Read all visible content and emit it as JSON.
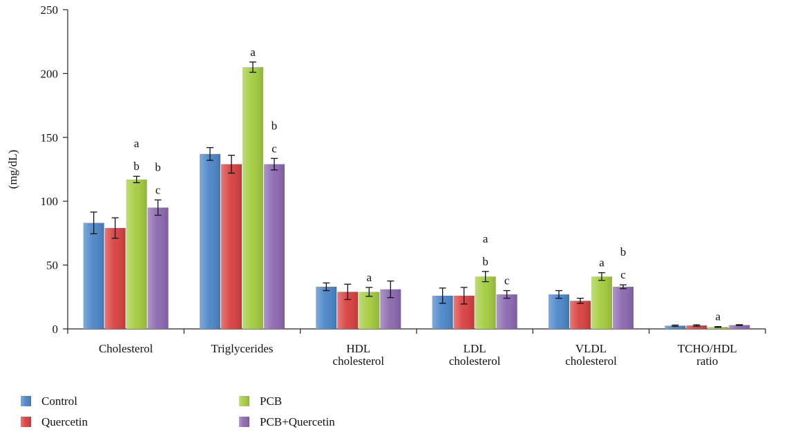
{
  "chart_data": {
    "type": "bar",
    "ylabel": "(mg/dL)",
    "ylim": [
      0,
      250
    ],
    "yticks": [
      0,
      50,
      100,
      150,
      200,
      250
    ],
    "grid": false,
    "legend_position": "bottom-left",
    "categories": [
      [
        "Cholesterol"
      ],
      [
        "Triglycerides"
      ],
      [
        "HDL",
        "cholesterol"
      ],
      [
        "LDL",
        "cholesterol"
      ],
      [
        "VLDL",
        "cholesterol"
      ],
      [
        "TCHO/HDL",
        "ratio"
      ]
    ],
    "series": [
      {
        "name": "Control",
        "color": "#4a86c8",
        "values": [
          83,
          137,
          33,
          26,
          27,
          2.5
        ],
        "errors": [
          8.5,
          5,
          3,
          6,
          3,
          0.5
        ],
        "annotations": [
          [],
          [],
          [],
          [],
          [],
          []
        ]
      },
      {
        "name": "Quercetin",
        "color": "#d8403f",
        "values": [
          79,
          129,
          29,
          26,
          22,
          2.7
        ],
        "errors": [
          8,
          7,
          6,
          6.5,
          2,
          0.5
        ],
        "annotations": [
          [],
          [],
          [],
          [],
          [],
          []
        ]
      },
      {
        "name": "PCB",
        "color": "#a3cc3f",
        "values": [
          117,
          205,
          29,
          41,
          41,
          1.5
        ],
        "errors": [
          2.5,
          4,
          3.5,
          4,
          3,
          0.3
        ],
        "annotations": [
          [
            "a",
            "b"
          ],
          [
            "a"
          ],
          [
            "a"
          ],
          [
            "a",
            "b"
          ],
          [
            "a"
          ],
          [
            "a"
          ]
        ]
      },
      {
        "name": "PCB+Quercetin",
        "color": "#8c68b0",
        "values": [
          95,
          129,
          31,
          27,
          33,
          3
        ],
        "errors": [
          6,
          4.5,
          6.5,
          3,
          1.5,
          0.3
        ],
        "annotations": [
          [
            "b",
            "c"
          ],
          [
            "b",
            "c"
          ],
          [],
          [
            "c"
          ],
          [
            "b",
            "c"
          ],
          []
        ]
      }
    ]
  }
}
